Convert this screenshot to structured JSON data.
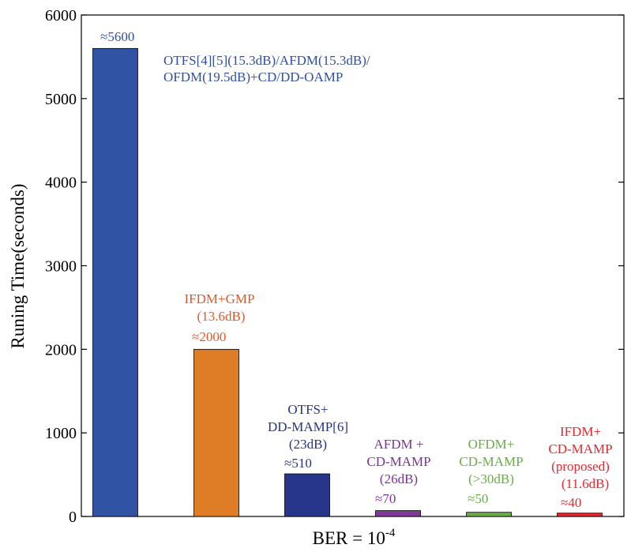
{
  "chart_data": {
    "type": "bar",
    "ylabel": "Runing Time(seconds)",
    "xlabel_main": "BER = 10",
    "xlabel_exp": "-4",
    "ylim": [
      0,
      6000
    ],
    "yticks": [
      0,
      1000,
      2000,
      3000,
      4000,
      5000,
      6000
    ],
    "grid": false,
    "bars": [
      {
        "name": "OTFS[4][5](15.3dB)/AFDM(15.3dB)/OFDM(19.5dB)+CD/DD-OAMP",
        "value": 5600,
        "color": "#3153a4",
        "text_color": "#2f4fa3",
        "value_label": "≈5600",
        "desc": [
          "OTFS[4][5](15.3dB)/AFDM(15.3dB)/",
          "OFDM(19.5dB)+CD/DD-OAMP"
        ]
      },
      {
        "name": "IFDM+GMP",
        "value": 2000,
        "color": "#df7d27",
        "text_color": "#e0592a",
        "value_label": "≈2000",
        "desc": [
          "IFDM+GMP",
          "(13.6dB)"
        ]
      },
      {
        "name": "OTFS+DD-MAMP[6]",
        "value": 510,
        "color": "#27368a",
        "text_color": "#25348a",
        "value_label": "≈510",
        "desc": [
          "OTFS+",
          "DD-MAMP[6]",
          "(23dB)"
        ]
      },
      {
        "name": "AFDM+CD-MAMP",
        "value": 70,
        "color": "#7f3a98",
        "text_color": "#7a3494",
        "value_label": "≈70",
        "desc": [
          "AFDM +",
          "CD-MAMP",
          "(26dB)"
        ]
      },
      {
        "name": "OFDM+CD-MAMP",
        "value": 50,
        "color": "#6aac46",
        "text_color": "#6aac46",
        "value_label": "≈50",
        "desc": [
          "OFDM+",
          "CD-MAMP",
          "(>30dB)"
        ]
      },
      {
        "name": "IFDM+CD-MAMP (proposed)",
        "value": 40,
        "color": "#e8272f",
        "text_color": "#e8272f",
        "value_label": "≈40",
        "desc": [
          "IFDM+",
          "CD-MAMP",
          "(proposed)",
          "(11.6dB)"
        ]
      }
    ]
  }
}
